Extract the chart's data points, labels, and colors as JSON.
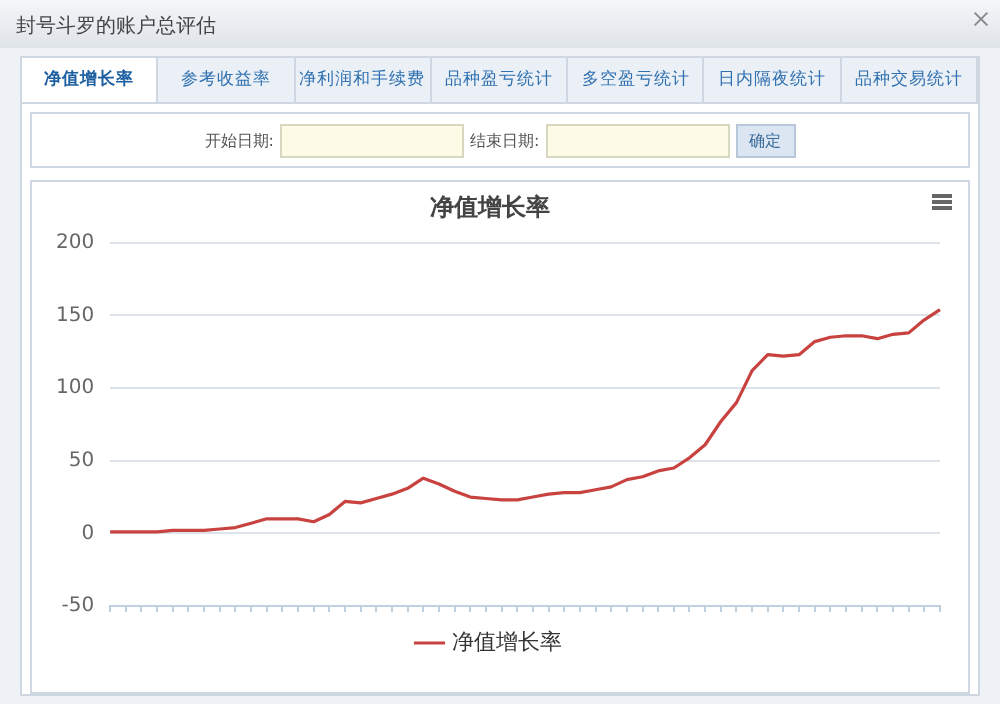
{
  "chart_data": {
    "type": "line",
    "title": "净值增长率",
    "annotations": [
      "封号斗罗的账户总评估",
      "净值增长率",
      "参考收益率",
      "净利润和手续费",
      "品种盈亏统计",
      "多空盈亏统计",
      "日内隔夜统计",
      "品种交易统计",
      "开始日期:",
      "结束日期:",
      "确定"
    ],
    "categories": [
      null,
      null,
      null,
      null,
      null,
      null,
      null,
      null,
      null,
      null,
      null,
      null,
      null,
      null,
      null,
      null,
      null,
      null,
      null,
      null,
      null,
      null,
      null,
      null,
      null,
      null,
      null,
      null,
      null,
      null,
      null,
      null,
      null,
      null,
      null,
      null,
      null,
      null,
      null,
      null,
      null,
      null,
      null,
      null,
      null,
      null,
      null,
      null,
      null,
      null,
      null,
      null,
      null,
      null
    ],
    "series": [
      {
        "name": "净值增长率",
        "color": "#c8423f",
        "values": [
          1,
          1,
          1,
          1,
          2,
          2,
          2,
          3,
          4,
          7,
          10,
          10,
          10,
          8,
          13,
          22,
          21,
          24,
          27,
          31,
          38,
          34,
          29,
          25,
          24,
          23,
          23,
          25,
          27,
          28,
          28,
          30,
          32,
          37,
          39,
          43,
          45,
          52,
          61,
          77,
          90,
          112,
          123,
          122,
          123,
          132,
          135,
          136,
          136,
          134,
          137,
          138,
          147,
          154
        ]
      }
    ],
    "ylim": [
      -50,
      200
    ],
    "yticks": [
      -50,
      0,
      50,
      100,
      150,
      200
    ],
    "grid": "y",
    "legend": "bottom",
    "tick_labels": "y",
    "marker": "none",
    "line_style": "solid"
  }
}
